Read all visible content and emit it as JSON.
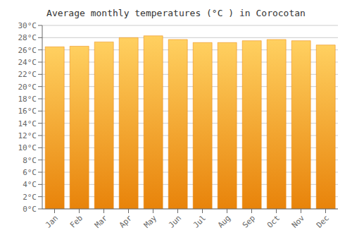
{
  "chart_data": {
    "type": "bar",
    "title": "Average monthly temperatures (°C ) in Corocotan",
    "categories": [
      "Jan",
      "Feb",
      "Mar",
      "Apr",
      "May",
      "Jun",
      "Jul",
      "Aug",
      "Sep",
      "Oct",
      "Nov",
      "Dec"
    ],
    "values": [
      26.5,
      26.6,
      27.3,
      28.0,
      28.3,
      27.7,
      27.2,
      27.2,
      27.5,
      27.7,
      27.5,
      26.8
    ],
    "color": "#E8830A",
    "ylim": [
      0,
      30
    ],
    "yticks": [
      {
        "value": 0,
        "label": "0°C"
      },
      {
        "value": 2,
        "label": "2°C"
      },
      {
        "value": 4,
        "label": "4°C"
      },
      {
        "value": 6,
        "label": "6°C"
      },
      {
        "value": 8,
        "label": "8°C"
      },
      {
        "value": 10,
        "label": "10°C"
      },
      {
        "value": 12,
        "label": "12°C"
      },
      {
        "value": 14,
        "label": "14°C"
      },
      {
        "value": 16,
        "label": "16°C"
      },
      {
        "value": 18,
        "label": "18°C"
      },
      {
        "value": 20,
        "label": "20°C"
      },
      {
        "value": 22,
        "label": "22°C"
      },
      {
        "value": 24,
        "label": "24°C"
      },
      {
        "value": 26,
        "label": "26°C"
      },
      {
        "value": 28,
        "label": "28°C"
      },
      {
        "value": 30,
        "label": "30°C"
      }
    ],
    "grid": true
  }
}
